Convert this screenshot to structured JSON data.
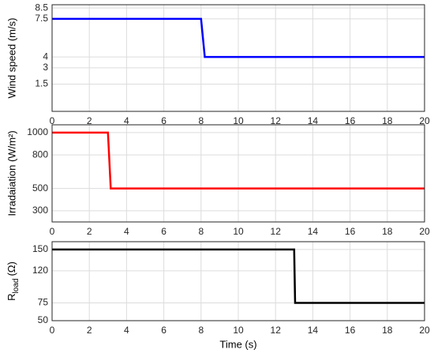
{
  "chart_data": [
    {
      "type": "line",
      "ylabel": "Wind speed (m/s)",
      "x": [
        0,
        8,
        8.2,
        20
      ],
      "series": [
        {
          "color": "#0000ff",
          "values": [
            7.5,
            7.5,
            4,
            4
          ]
        }
      ],
      "xlim": [
        0,
        20
      ],
      "xticks": [
        0,
        2,
        4,
        6,
        8,
        10,
        12,
        14,
        16,
        18,
        20
      ],
      "ylim": [
        -1,
        8.8
      ],
      "yticks": [
        1.5,
        3,
        4,
        7.5,
        8.5
      ],
      "grid": true
    },
    {
      "type": "line",
      "ylabel": "Irradaiation (W/m²)",
      "x": [
        0,
        3,
        3.15,
        20
      ],
      "series": [
        {
          "color": "#ff0000",
          "values": [
            1000,
            1000,
            500,
            500
          ]
        }
      ],
      "xlim": [
        0,
        20
      ],
      "xticks": [
        0,
        2,
        4,
        6,
        8,
        10,
        12,
        14,
        16,
        18,
        20
      ],
      "ylim": [
        200,
        1070
      ],
      "yticks": [
        300,
        500,
        800,
        1000
      ],
      "grid": true
    },
    {
      "type": "line",
      "ylabel": {
        "main": "R",
        "sub": "load",
        "rest": "(Ω)"
      },
      "xlabel": "Time (s)",
      "x": [
        0,
        13,
        13.05,
        20
      ],
      "series": [
        {
          "color": "#000000",
          "values": [
            150,
            150,
            75,
            75
          ]
        }
      ],
      "xlim": [
        0,
        20
      ],
      "xticks": [
        0,
        2,
        4,
        6,
        8,
        10,
        12,
        14,
        16,
        18,
        20
      ],
      "ylim": [
        50,
        161
      ],
      "yticks": [
        50,
        75,
        120,
        150
      ],
      "grid": true
    }
  ]
}
